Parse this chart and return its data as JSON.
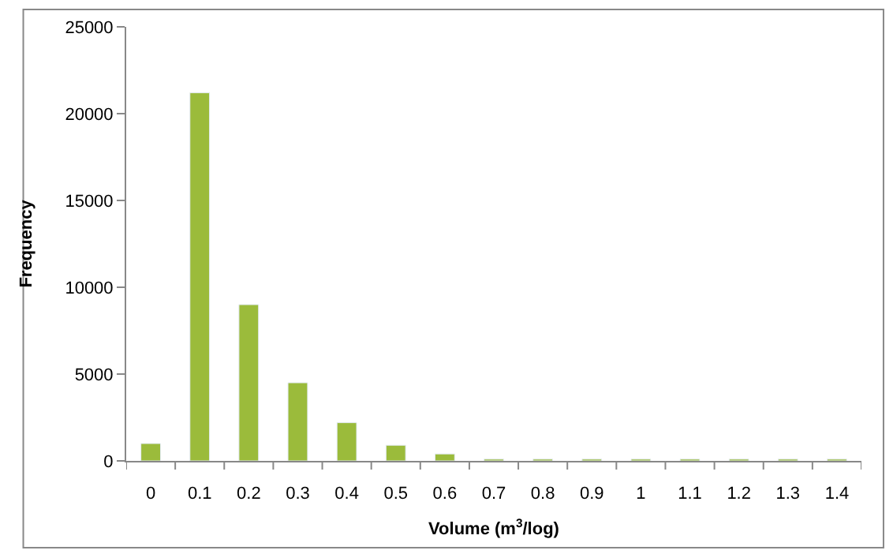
{
  "chart_data": {
    "type": "bar",
    "xlabel": "Volume (m$^{3}$/log)",
    "ylabel": "Frequency",
    "categories": [
      "0",
      "0.1",
      "0.2",
      "0.3",
      "0.4",
      "0.5",
      "0.6",
      "0.7",
      "0.8",
      "0.9",
      "1",
      "1.1",
      "1.2",
      "1.3",
      "1.4"
    ],
    "values": [
      1000,
      21200,
      9000,
      4500,
      2200,
      900,
      400,
      100,
      100,
      100,
      100,
      100,
      100,
      100,
      100
    ],
    "color": "#9bbb3b",
    "ylim": [
      0,
      25000
    ],
    "yticks": [
      0,
      5000,
      10000,
      15000,
      20000,
      25000
    ]
  }
}
